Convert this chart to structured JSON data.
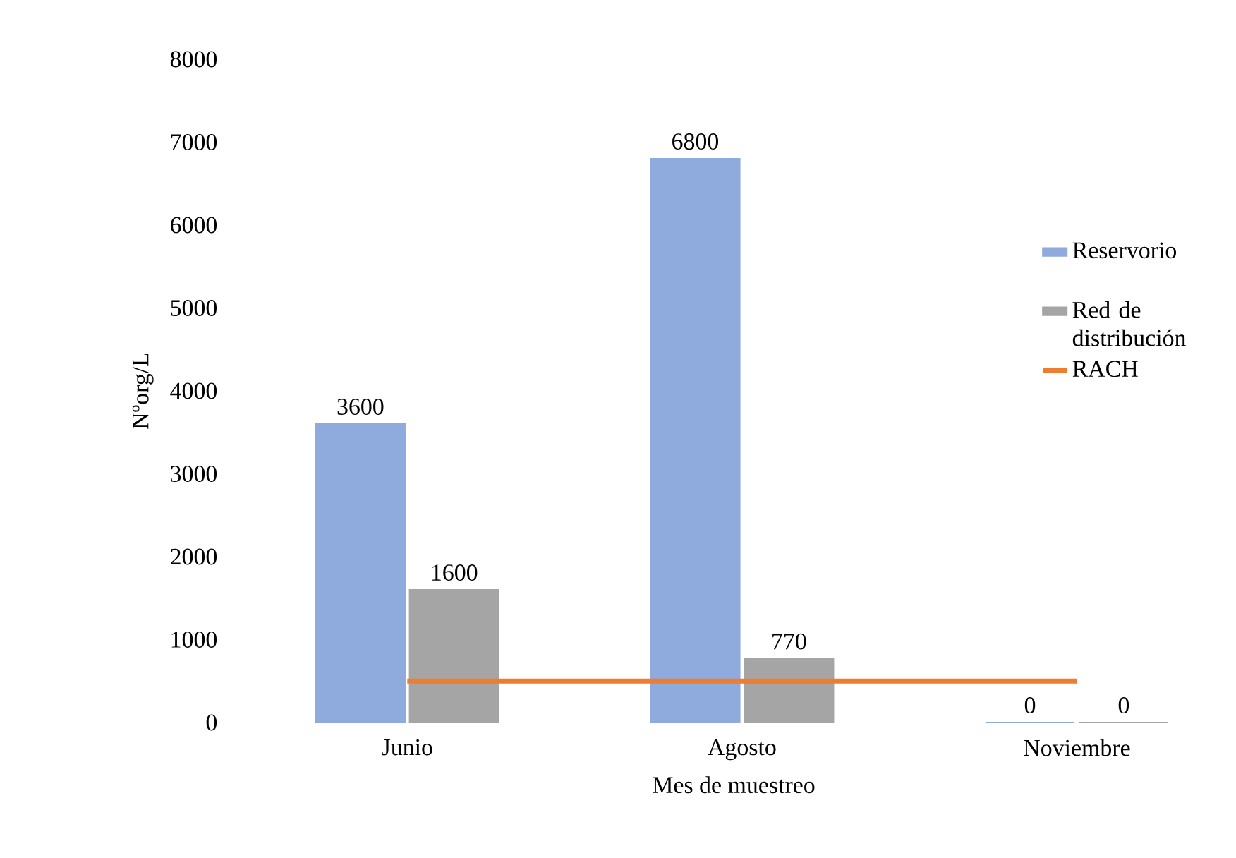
{
  "chart_data": {
    "type": "bar",
    "xlabel": "Mes de muestreo",
    "ylabel": "Nºorg/L",
    "categories": [
      "Junio",
      "Agosto",
      "Noviembre"
    ],
    "series": [
      {
        "name": "Reservorio",
        "color": "#8faadc",
        "values": [
          3600,
          6800,
          0
        ],
        "value_labels": [
          "3600",
          "6800",
          "0"
        ]
      },
      {
        "name": "Red de distribución",
        "color": "#a5a5a5",
        "values": [
          1600,
          770,
          0
        ],
        "value_labels": [
          "1600",
          "770",
          "0"
        ]
      },
      {
        "name": "RACH",
        "type": "line",
        "color": "#ed7d31",
        "values": [
          500,
          500,
          500
        ]
      }
    ],
    "ylim": [
      0,
      8000
    ],
    "yticks": [
      0,
      1000,
      2000,
      3000,
      4000,
      5000,
      6000,
      7000,
      8000
    ],
    "grid": false,
    "legend": "right"
  }
}
